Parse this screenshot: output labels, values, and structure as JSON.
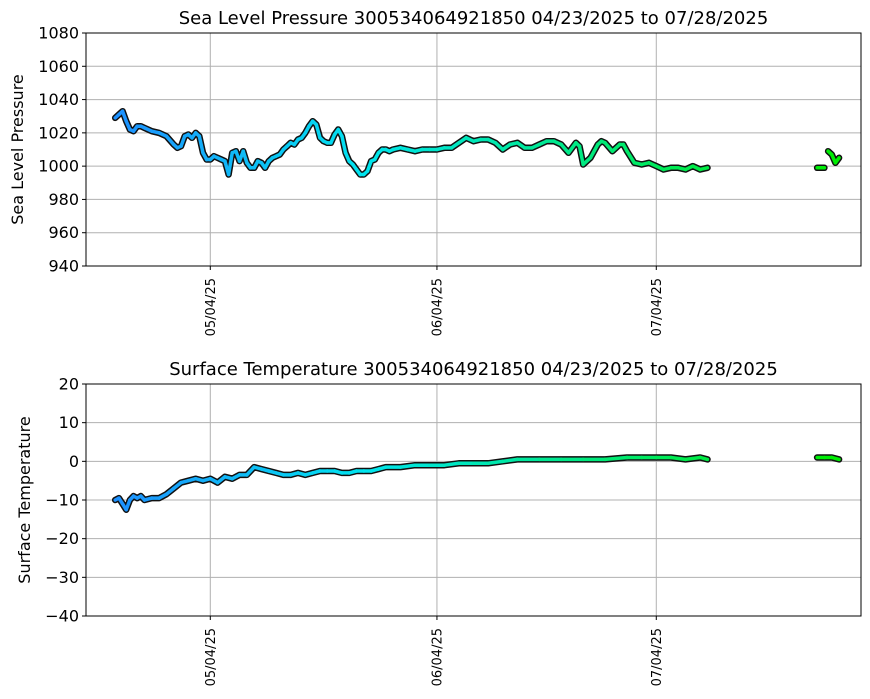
{
  "chart_data": [
    {
      "type": "line",
      "title": "Sea Level Pressure 300534064921850  04/23/2025 to 07/28/2025",
      "xlabel": "",
      "ylabel": "Sea Level Pressure",
      "xlim": [
        "2025-04-17",
        "2025-08-01"
      ],
      "ylim": [
        940,
        1080
      ],
      "yticks": [
        "940",
        "960",
        "980",
        "1000",
        "1020",
        "1040",
        "1060",
        "1080"
      ],
      "xticks": [
        {
          "date": "2025-05-04",
          "label": "05/04/25"
        },
        {
          "date": "2025-06-04",
          "label": "06/04/25"
        },
        {
          "date": "2025-07-04",
          "label": "07/04/25"
        }
      ],
      "grid": true,
      "color_start": "#1e90ff",
      "color_mid": "#00e5ee",
      "color_end": "#00ee00",
      "series": [
        {
          "points": [
            [
              "2025-04-21T00:00",
              1029
            ],
            [
              "2025-04-21T12:00",
              1031
            ],
            [
              "2025-04-22T00:00",
              1033
            ],
            [
              "2025-04-22T12:00",
              1027
            ],
            [
              "2025-04-23T00:00",
              1022
            ],
            [
              "2025-04-23T12:00",
              1021
            ],
            [
              "2025-04-24T00:00",
              1024
            ],
            [
              "2025-04-24T12:00",
              1024
            ],
            [
              "2025-04-25T00:00",
              1023
            ],
            [
              "2025-04-26T00:00",
              1021
            ],
            [
              "2025-04-27T00:00",
              1020
            ],
            [
              "2025-04-28T00:00",
              1018
            ],
            [
              "2025-04-29T00:00",
              1013
            ],
            [
              "2025-04-29T12:00",
              1011
            ],
            [
              "2025-04-30T00:00",
              1012
            ],
            [
              "2025-04-30T12:00",
              1018
            ],
            [
              "2025-05-01T00:00",
              1019
            ],
            [
              "2025-05-01T12:00",
              1017
            ],
            [
              "2025-05-02T00:00",
              1020
            ],
            [
              "2025-05-02T12:00",
              1018
            ],
            [
              "2025-05-03T00:00",
              1008
            ],
            [
              "2025-05-03T12:00",
              1004
            ],
            [
              "2025-05-04T00:00",
              1004
            ],
            [
              "2025-05-04T12:00",
              1006
            ],
            [
              "2025-05-05T00:00",
              1005
            ],
            [
              "2025-05-05T12:00",
              1004
            ],
            [
              "2025-05-06T00:00",
              1003
            ],
            [
              "2025-05-06T12:00",
              995
            ],
            [
              "2025-05-07T00:00",
              1008
            ],
            [
              "2025-05-07T12:00",
              1009
            ],
            [
              "2025-05-08T00:00",
              1003
            ],
            [
              "2025-05-08T12:00",
              1009
            ],
            [
              "2025-05-09T00:00",
              1002
            ],
            [
              "2025-05-09T12:00",
              999
            ],
            [
              "2025-05-10T00:00",
              999
            ],
            [
              "2025-05-10T12:00",
              1003
            ],
            [
              "2025-05-11T00:00",
              1002
            ],
            [
              "2025-05-11T12:00",
              999
            ],
            [
              "2025-05-12T00:00",
              1003
            ],
            [
              "2025-05-12T12:00",
              1005
            ],
            [
              "2025-05-13T00:00",
              1006
            ],
            [
              "2025-05-13T12:00",
              1007
            ],
            [
              "2025-05-14T00:00",
              1010
            ],
            [
              "2025-05-14T12:00",
              1012
            ],
            [
              "2025-05-15T00:00",
              1014
            ],
            [
              "2025-05-15T12:00",
              1013
            ],
            [
              "2025-05-16T00:00",
              1016
            ],
            [
              "2025-05-16T12:00",
              1017
            ],
            [
              "2025-05-17T00:00",
              1020
            ],
            [
              "2025-05-17T12:00",
              1024
            ],
            [
              "2025-05-18T00:00",
              1027
            ],
            [
              "2025-05-18T12:00",
              1025
            ],
            [
              "2025-05-19T00:00",
              1017
            ],
            [
              "2025-05-19T12:00",
              1015
            ],
            [
              "2025-05-20T00:00",
              1014
            ],
            [
              "2025-05-20T12:00",
              1014
            ],
            [
              "2025-05-21T00:00",
              1019
            ],
            [
              "2025-05-21T12:00",
              1022
            ],
            [
              "2025-05-22T00:00",
              1018
            ],
            [
              "2025-05-22T12:00",
              1008
            ],
            [
              "2025-05-23T00:00",
              1003
            ],
            [
              "2025-05-23T12:00",
              1001
            ],
            [
              "2025-05-24T00:00",
              998
            ],
            [
              "2025-05-24T12:00",
              995
            ],
            [
              "2025-05-25T00:00",
              995
            ],
            [
              "2025-05-25T12:00",
              997
            ],
            [
              "2025-05-26T00:00",
              1003
            ],
            [
              "2025-05-26T12:00",
              1004
            ],
            [
              "2025-05-27T00:00",
              1008
            ],
            [
              "2025-05-27T12:00",
              1010
            ],
            [
              "2025-05-28T00:00",
              1010
            ],
            [
              "2025-05-28T12:00",
              1009
            ],
            [
              "2025-05-29T00:00",
              1010
            ],
            [
              "2025-05-30T00:00",
              1011
            ],
            [
              "2025-05-31T00:00",
              1010
            ],
            [
              "2025-06-01T00:00",
              1009
            ],
            [
              "2025-06-02T00:00",
              1010
            ],
            [
              "2025-06-03T00:00",
              1010
            ],
            [
              "2025-06-04T00:00",
              1010
            ],
            [
              "2025-06-05T00:00",
              1011
            ],
            [
              "2025-06-06T00:00",
              1011
            ],
            [
              "2025-06-07T00:00",
              1014
            ],
            [
              "2025-06-08T00:00",
              1017
            ],
            [
              "2025-06-09T00:00",
              1015
            ],
            [
              "2025-06-10T00:00",
              1016
            ],
            [
              "2025-06-11T00:00",
              1016
            ],
            [
              "2025-06-12T00:00",
              1014
            ],
            [
              "2025-06-13T00:00",
              1010
            ],
            [
              "2025-06-14T00:00",
              1013
            ],
            [
              "2025-06-15T00:00",
              1014
            ],
            [
              "2025-06-16T00:00",
              1011
            ],
            [
              "2025-06-17T00:00",
              1011
            ],
            [
              "2025-06-18T00:00",
              1013
            ],
            [
              "2025-06-19T00:00",
              1015
            ],
            [
              "2025-06-20T00:00",
              1015
            ],
            [
              "2025-06-21T00:00",
              1013
            ],
            [
              "2025-06-22T00:00",
              1008
            ],
            [
              "2025-06-23T00:00",
              1014
            ],
            [
              "2025-06-23T12:00",
              1012
            ],
            [
              "2025-06-24T00:00",
              1001
            ],
            [
              "2025-06-25T00:00",
              1005
            ],
            [
              "2025-06-26T00:00",
              1013
            ],
            [
              "2025-06-26T12:00",
              1015
            ],
            [
              "2025-06-27T00:00",
              1014
            ],
            [
              "2025-06-28T00:00",
              1009
            ],
            [
              "2025-06-29T00:00",
              1013
            ],
            [
              "2025-06-29T12:00",
              1013
            ],
            [
              "2025-06-30T00:00",
              1009
            ],
            [
              "2025-07-01T00:00",
              1002
            ],
            [
              "2025-07-02T00:00",
              1001
            ],
            [
              "2025-07-03T00:00",
              1002
            ],
            [
              "2025-07-04T00:00",
              1000
            ],
            [
              "2025-07-05T00:00",
              998
            ],
            [
              "2025-07-06T00:00",
              999
            ],
            [
              "2025-07-07T00:00",
              999
            ],
            [
              "2025-07-08T00:00",
              998
            ],
            [
              "2025-07-09T00:00",
              1000
            ],
            [
              "2025-07-10T00:00",
              998
            ],
            [
              "2025-07-11T00:00",
              999
            ]
          ]
        },
        {
          "points": [
            [
              "2025-07-26T00:00",
              999
            ],
            [
              "2025-07-27T00:00",
              999
            ]
          ]
        },
        {
          "points": [
            [
              "2025-07-27T12:00",
              1009
            ],
            [
              "2025-07-28T00:00",
              1007
            ],
            [
              "2025-07-28T12:00",
              1002
            ],
            [
              "2025-07-29T00:00",
              1005
            ]
          ]
        }
      ]
    },
    {
      "type": "line",
      "title": "Surface Temperature 300534064921850  04/23/2025 to 07/28/2025",
      "xlabel": "",
      "ylabel": "Surface Temperature",
      "xlim": [
        "2025-04-17",
        "2025-08-01"
      ],
      "ylim": [
        -40,
        20
      ],
      "yticks": [
        "−40",
        "−30",
        "−20",
        "−10",
        "0",
        "10",
        "20"
      ],
      "xticks": [
        {
          "date": "2025-05-04",
          "label": "05/04/25"
        },
        {
          "date": "2025-06-04",
          "label": "06/04/25"
        },
        {
          "date": "2025-07-04",
          "label": "07/04/25"
        }
      ],
      "grid": true,
      "color_start": "#1e90ff",
      "color_mid": "#00e5ee",
      "color_end": "#00ee00",
      "series": [
        {
          "points": [
            [
              "2025-04-21T00:00",
              -10
            ],
            [
              "2025-04-21T12:00",
              -9.5
            ],
            [
              "2025-04-22T00:00",
              -11
            ],
            [
              "2025-04-22T12:00",
              -12.5
            ],
            [
              "2025-04-23T00:00",
              -10
            ],
            [
              "2025-04-23T12:00",
              -9
            ],
            [
              "2025-04-24T00:00",
              -9.5
            ],
            [
              "2025-04-24T12:00",
              -9
            ],
            [
              "2025-04-25T00:00",
              -10
            ],
            [
              "2025-04-26T00:00",
              -9.5
            ],
            [
              "2025-04-27T00:00",
              -9.5
            ],
            [
              "2025-04-28T00:00",
              -8.5
            ],
            [
              "2025-04-29T00:00",
              -7
            ],
            [
              "2025-04-30T00:00",
              -5.5
            ],
            [
              "2025-05-01T00:00",
              -5
            ],
            [
              "2025-05-02T00:00",
              -4.5
            ],
            [
              "2025-05-03T00:00",
              -5
            ],
            [
              "2025-05-04T00:00",
              -4.5
            ],
            [
              "2025-05-05T00:00",
              -5.5
            ],
            [
              "2025-05-06T00:00",
              -4
            ],
            [
              "2025-05-07T00:00",
              -4.5
            ],
            [
              "2025-05-08T00:00",
              -3.5
            ],
            [
              "2025-05-09T00:00",
              -3.5
            ],
            [
              "2025-05-10T00:00",
              -1.5
            ],
            [
              "2025-05-11T00:00",
              -2
            ],
            [
              "2025-05-12T00:00",
              -2.5
            ],
            [
              "2025-05-13T00:00",
              -3
            ],
            [
              "2025-05-14T00:00",
              -3.5
            ],
            [
              "2025-05-15T00:00",
              -3.5
            ],
            [
              "2025-05-16T00:00",
              -3
            ],
            [
              "2025-05-17T00:00",
              -3.5
            ],
            [
              "2025-05-18T00:00",
              -3
            ],
            [
              "2025-05-19T00:00",
              -2.5
            ],
            [
              "2025-05-20T00:00",
              -2.5
            ],
            [
              "2025-05-21T00:00",
              -2.5
            ],
            [
              "2025-05-22T00:00",
              -3
            ],
            [
              "2025-05-23T00:00",
              -3
            ],
            [
              "2025-05-24T00:00",
              -2.5
            ],
            [
              "2025-05-25T00:00",
              -2.5
            ],
            [
              "2025-05-26T00:00",
              -2.5
            ],
            [
              "2025-05-27T00:00",
              -2
            ],
            [
              "2025-05-28T00:00",
              -1.5
            ],
            [
              "2025-05-30T00:00",
              -1.5
            ],
            [
              "2025-06-01T00:00",
              -1
            ],
            [
              "2025-06-03T00:00",
              -1
            ],
            [
              "2025-06-05T00:00",
              -1
            ],
            [
              "2025-06-07T00:00",
              -0.5
            ],
            [
              "2025-06-09T00:00",
              -0.5
            ],
            [
              "2025-06-11T00:00",
              -0.5
            ],
            [
              "2025-06-13T00:00",
              0
            ],
            [
              "2025-06-15T00:00",
              0.5
            ],
            [
              "2025-06-18T00:00",
              0.5
            ],
            [
              "2025-06-21T00:00",
              0.5
            ],
            [
              "2025-06-24T00:00",
              0.5
            ],
            [
              "2025-06-27T00:00",
              0.5
            ],
            [
              "2025-06-30T00:00",
              1
            ],
            [
              "2025-07-02T00:00",
              1
            ],
            [
              "2025-07-04T00:00",
              1
            ],
            [
              "2025-07-06T00:00",
              1
            ],
            [
              "2025-07-08T00:00",
              0.5
            ],
            [
              "2025-07-10T00:00",
              1
            ],
            [
              "2025-07-11T00:00",
              0.5
            ]
          ]
        },
        {
          "points": [
            [
              "2025-07-26T00:00",
              1
            ],
            [
              "2025-07-27T00:00",
              1
            ],
            [
              "2025-07-28T00:00",
              1
            ],
            [
              "2025-07-29T00:00",
              0.5
            ]
          ]
        }
      ]
    }
  ]
}
